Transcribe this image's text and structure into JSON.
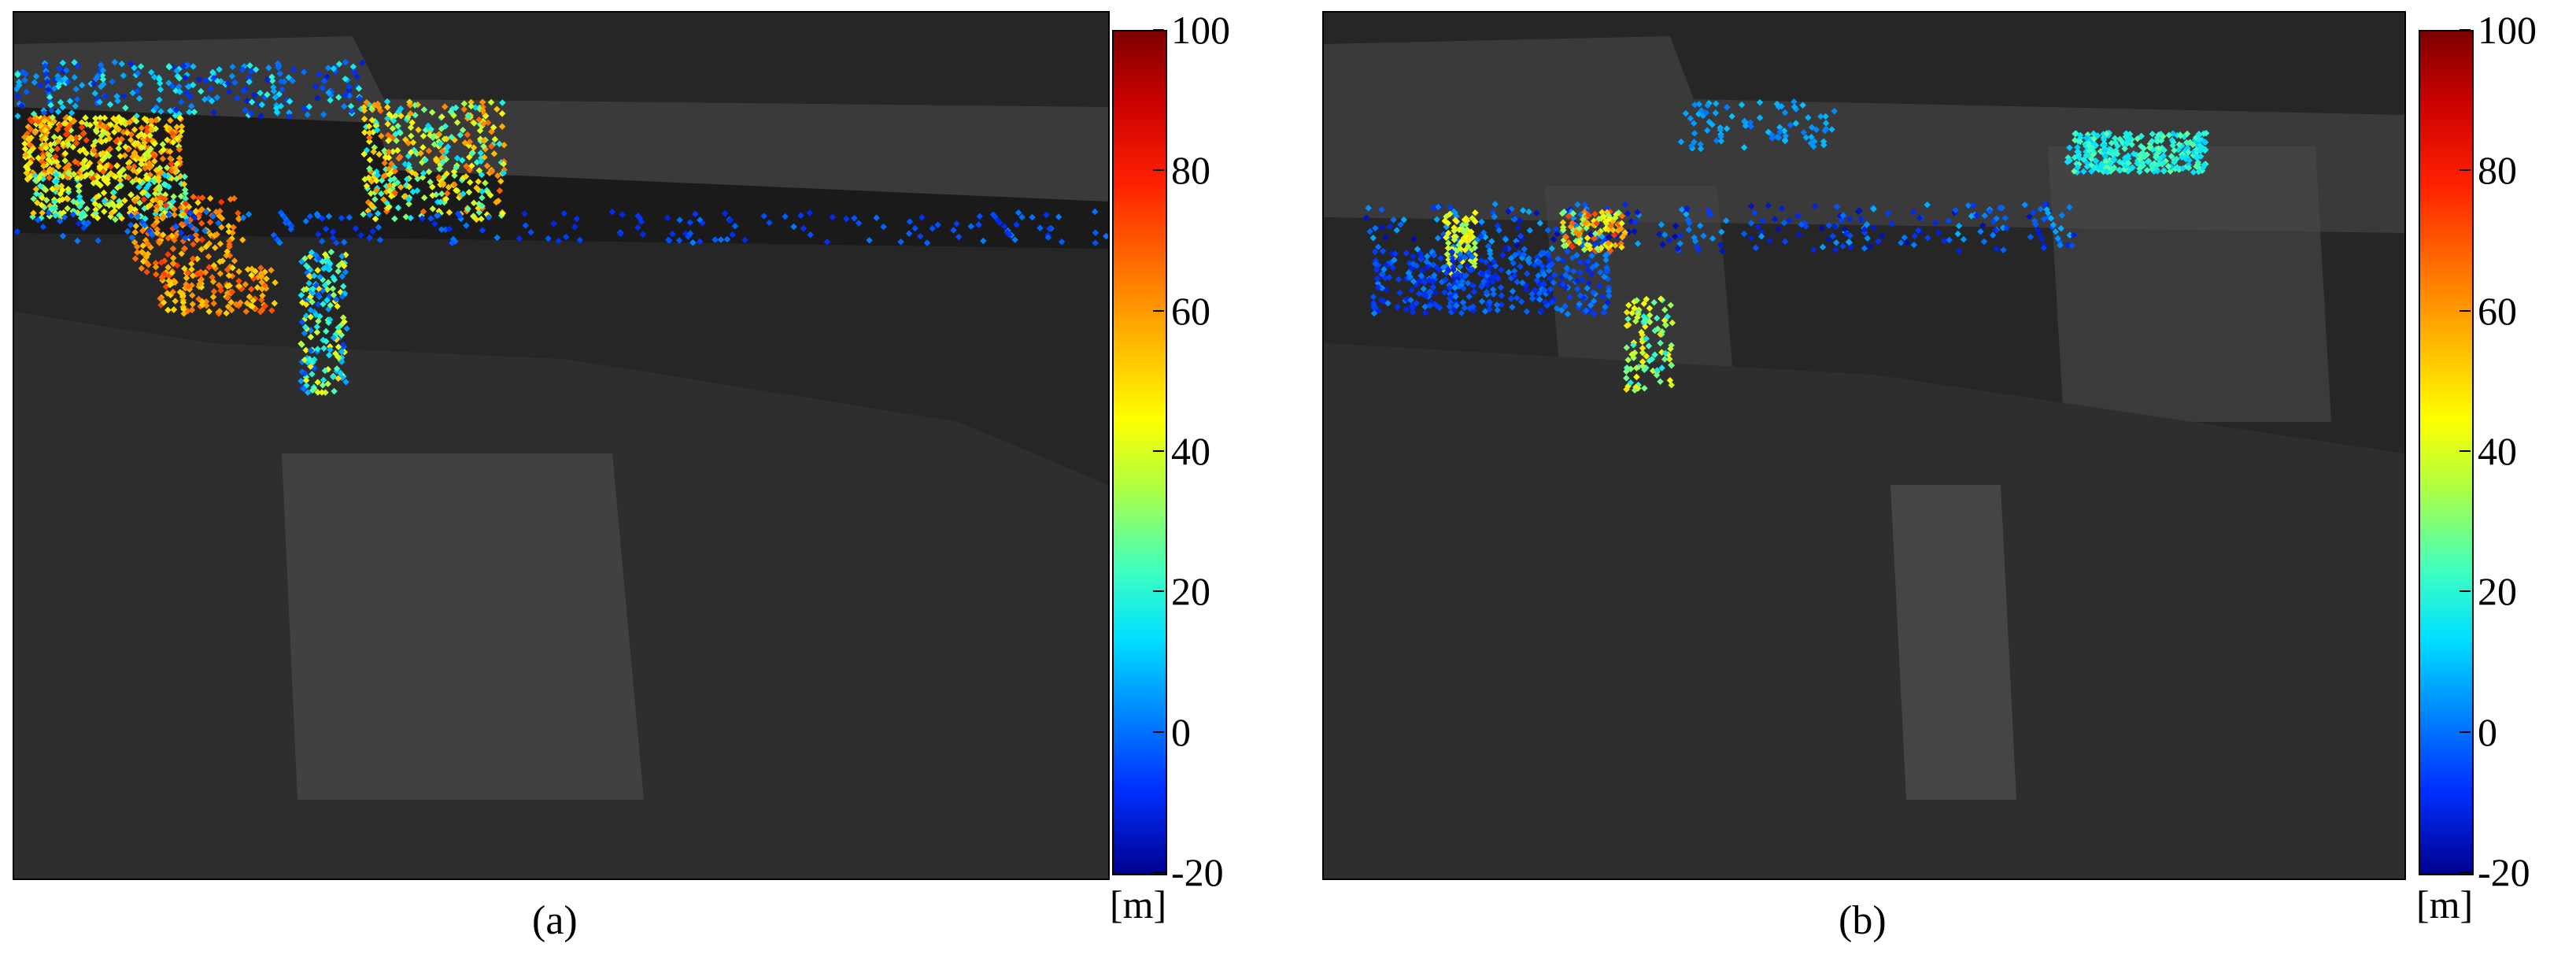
{
  "panels": [
    {
      "caption": "(a)",
      "colorbar": {
        "unit": "[m]",
        "ticks": [
          "100",
          "80",
          "60",
          "40",
          "20",
          "0",
          "-20"
        ],
        "range": [
          -20,
          100
        ]
      },
      "colors": {
        "high": "#7f0000",
        "mid": "#ffff00",
        "low": "#00008f"
      }
    },
    {
      "caption": "(b)",
      "colorbar": {
        "unit": "[m]",
        "ticks": [
          "100",
          "80",
          "60",
          "40",
          "20",
          "0",
          "-20"
        ],
        "range": [
          -20,
          100
        ]
      },
      "colors": {
        "high": "#7f0000",
        "mid": "#ffff00",
        "low": "#00008f"
      }
    }
  ]
}
